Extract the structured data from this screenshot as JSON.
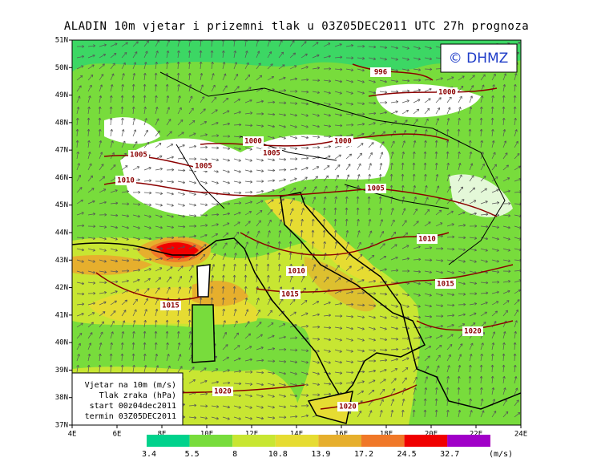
{
  "header": {
    "title": "ALADIN 10m vjetar i prizemni tlak u 03Z05DEC2011 UTC 27h prognoza"
  },
  "logo": "© DHMZ",
  "map": {
    "lat_labels": [
      "51N",
      "50N",
      "49N",
      "48N",
      "47N",
      "46N",
      "45N",
      "44N",
      "43N",
      "42N",
      "41N",
      "40N",
      "39N",
      "38N",
      "37N"
    ],
    "lon_labels": [
      "4E",
      "6E",
      "8E",
      "10E",
      "12E",
      "14E",
      "16E",
      "18E",
      "20E",
      "22E",
      "24E"
    ],
    "isobar_labels": [
      "996",
      "1000",
      "1000",
      "1005",
      "1000",
      "1005",
      "1005",
      "1010",
      "1005",
      "1010",
      "1010",
      "1015",
      "1015",
      "1015",
      "1020",
      "1020",
      "1020"
    ]
  },
  "info_box": [
    "Vjetar na 10m (m/s)",
    "Tlak zraka (hPa)",
    "start 00z04dec2011",
    "termin 03Z05DEC2011"
  ],
  "colorbar": {
    "levels": [
      3.4,
      5.5,
      8,
      10.8,
      13.9,
      17.2,
      24.5,
      32.7
    ],
    "colors": [
      "#00d28c",
      "#78dc3c",
      "#c8e632",
      "#e6dc32",
      "#e6af2d",
      "#f07828",
      "#f00000",
      "#d20064",
      "#a000c8"
    ],
    "unit": "(m/s)"
  }
}
